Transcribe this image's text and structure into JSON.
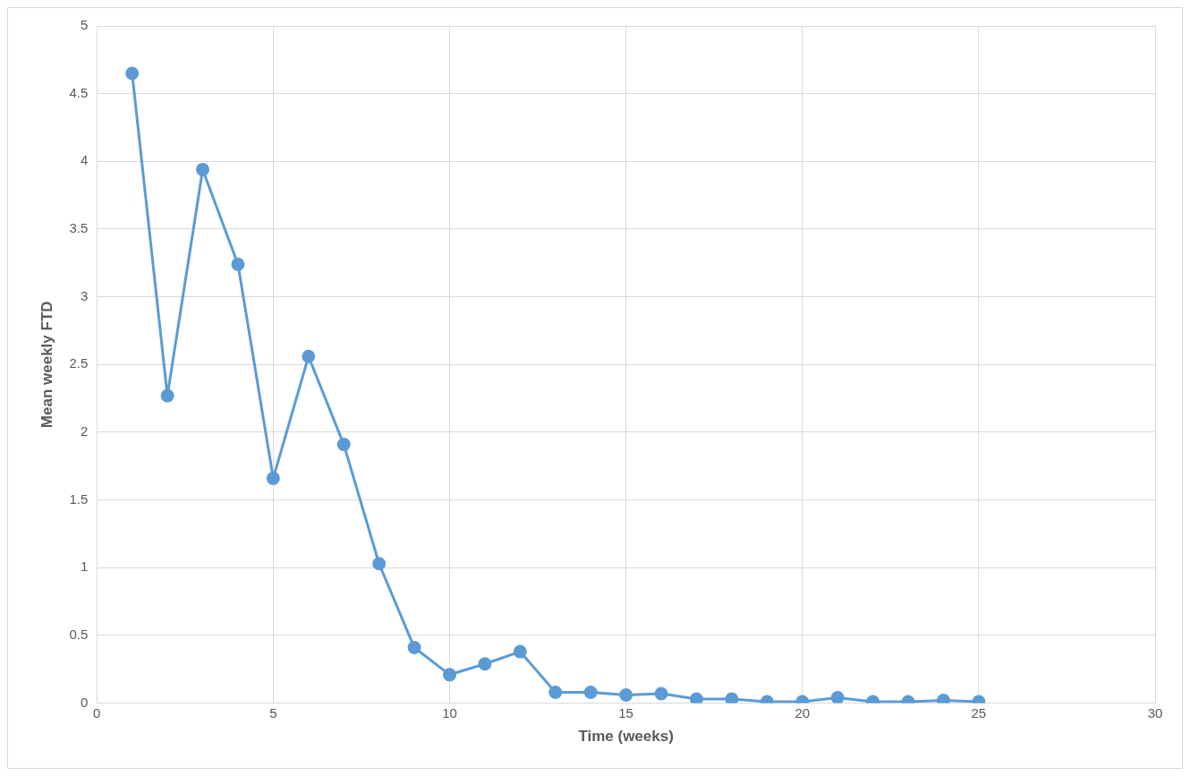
{
  "chart_data": {
    "type": "line",
    "xlabel": "Time (weeks)",
    "ylabel": "Mean weekly FTD",
    "x": [
      1,
      2,
      3,
      4,
      5,
      6,
      7,
      8,
      9,
      10,
      11,
      12,
      13,
      14,
      15,
      16,
      17,
      18,
      19,
      20,
      21,
      22,
      23,
      24,
      25
    ],
    "series": [
      {
        "color": "#5b9bd5",
        "values": [
          4.65,
          2.27,
          3.94,
          3.24,
          1.66,
          2.56,
          1.91,
          1.03,
          0.41,
          0.21,
          0.29,
          0.38,
          0.08,
          0.08,
          0.06,
          0.07,
          0.03,
          0.03,
          0.01,
          0.01,
          0.04,
          0.01,
          0.01,
          0.02,
          0.01
        ]
      }
    ],
    "xlim": [
      0,
      30
    ],
    "xticks": [
      0,
      5,
      10,
      15,
      20,
      25,
      30
    ],
    "ylim": [
      0,
      5
    ],
    "yticks": [
      0,
      0.5,
      1,
      1.5,
      2,
      2.5,
      3,
      3.5,
      4,
      4.5,
      5
    ],
    "grid": true,
    "legend": false,
    "marker": "circle",
    "line_style": "solid"
  }
}
